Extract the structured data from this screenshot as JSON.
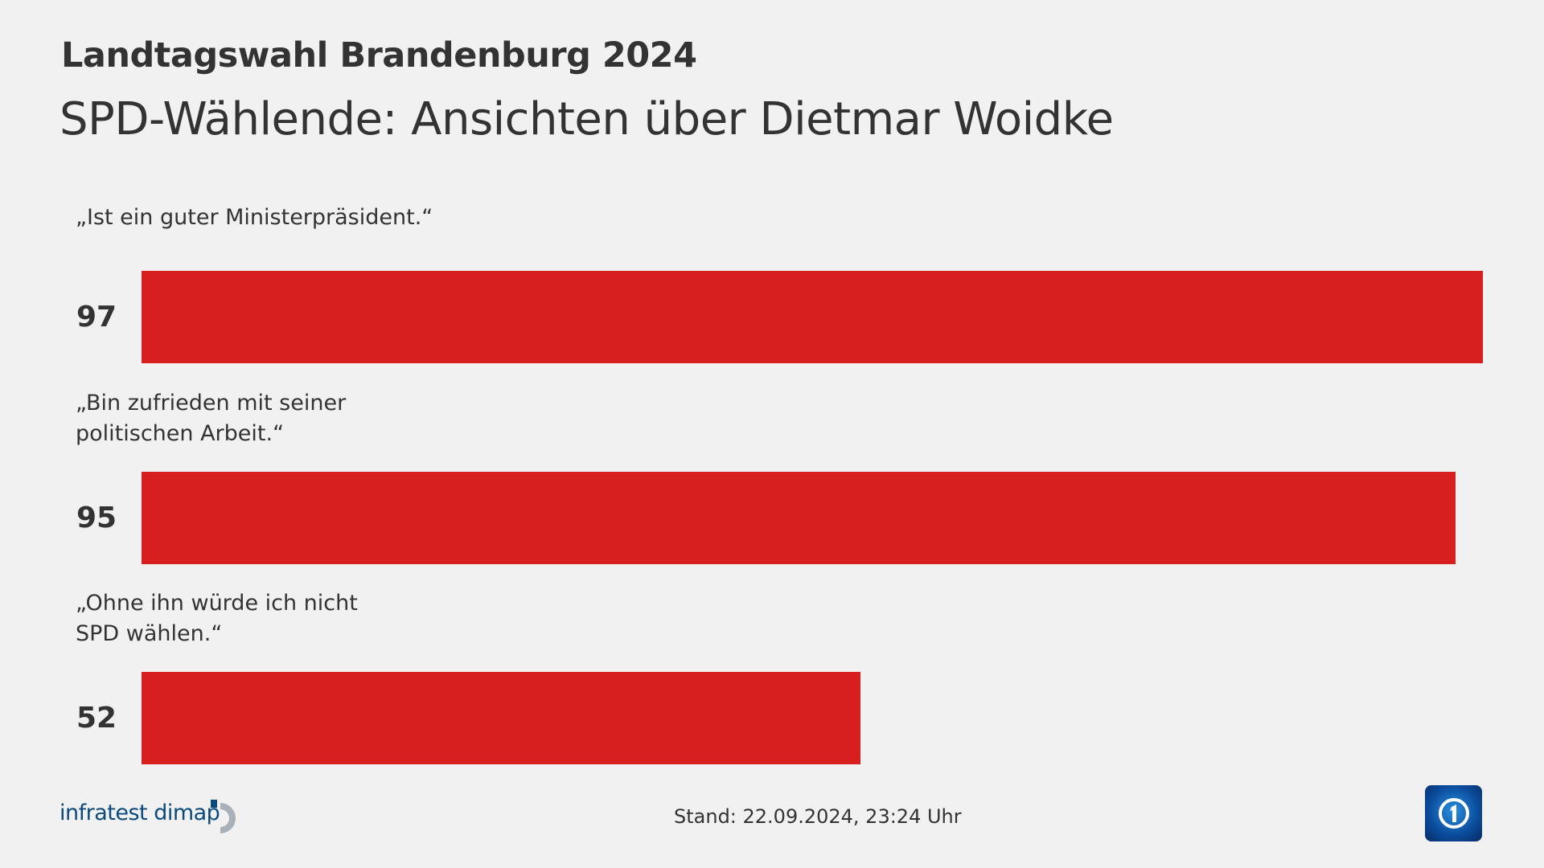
{
  "header": {
    "title": "Landtagswahl Brandenburg 2024",
    "subtitle": "SPD-Wählende: Ansichten über Dietmar Woidke"
  },
  "chart_data": {
    "type": "bar",
    "orientation": "horizontal",
    "title": "SPD-Wählende: Ansichten über Dietmar Woidke",
    "categories": [
      "„Ist ein guter Ministerpräsident.“",
      "„Bin zufrieden mit seiner\npolitischen Arbeit.“",
      "„Ohne ihn würde ich nicht\nSPD wählen.“"
    ],
    "values": [
      97,
      95,
      52
    ],
    "value_labels": [
      "97",
      "95",
      "52"
    ],
    "xlim": [
      0,
      100
    ],
    "bar_color": "#d71f1f"
  },
  "footer": {
    "source": "infratest dimap",
    "stand": "Stand:  22.09.2024, 23:24 Uhr",
    "logo": "tagesschau ARD 1"
  }
}
